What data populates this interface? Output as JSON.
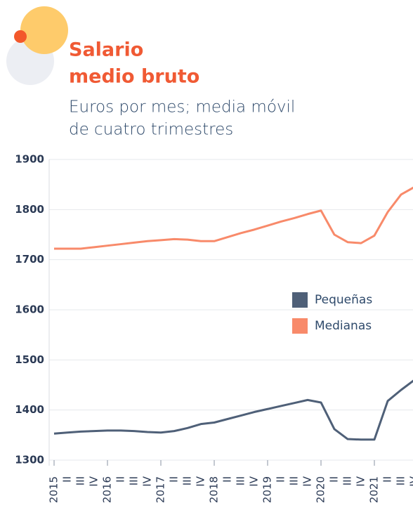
{
  "chart_data": {
    "type": "line",
    "title_lines": [
      "Salario",
      "medio bruto"
    ],
    "subtitle_lines": [
      "Euros por mes; media móvil",
      "de cuatro trimestres"
    ],
    "categories": [
      "2015",
      "II",
      "III",
      "IV",
      "2016",
      "II",
      "III",
      "IV",
      "2017",
      "II",
      "III",
      "IV",
      "2018",
      "II",
      "III",
      "IV",
      "2019",
      "II",
      "III",
      "IV",
      "2020",
      "II",
      "III",
      "IV",
      "2021",
      "II",
      "III",
      "IV"
    ],
    "series": [
      {
        "name": "Pequeñas",
        "color": "#4f6078",
        "values": [
          1353,
          1355,
          1357,
          1358,
          1359,
          1359,
          1358,
          1356,
          1355,
          1358,
          1364,
          1372,
          1375,
          1382,
          1389,
          1396,
          1402,
          1408,
          1414,
          1420,
          1415,
          1362,
          1342,
          1341,
          1341,
          1418,
          1440,
          1460
        ]
      },
      {
        "name": "Medianas",
        "color": "#f88a6a",
        "values": [
          1722,
          1722,
          1722,
          1725,
          1728,
          1731,
          1734,
          1737,
          1739,
          1741,
          1740,
          1737,
          1737,
          1745,
          1753,
          1760,
          1768,
          1776,
          1783,
          1791,
          1798,
          1750,
          1735,
          1733,
          1748,
          1795,
          1830,
          1845
        ]
      }
    ],
    "ylim": [
      1300,
      1900
    ],
    "yticks": [
      1300,
      1400,
      1500,
      1600,
      1700,
      1800,
      1900
    ],
    "grid": true
  }
}
